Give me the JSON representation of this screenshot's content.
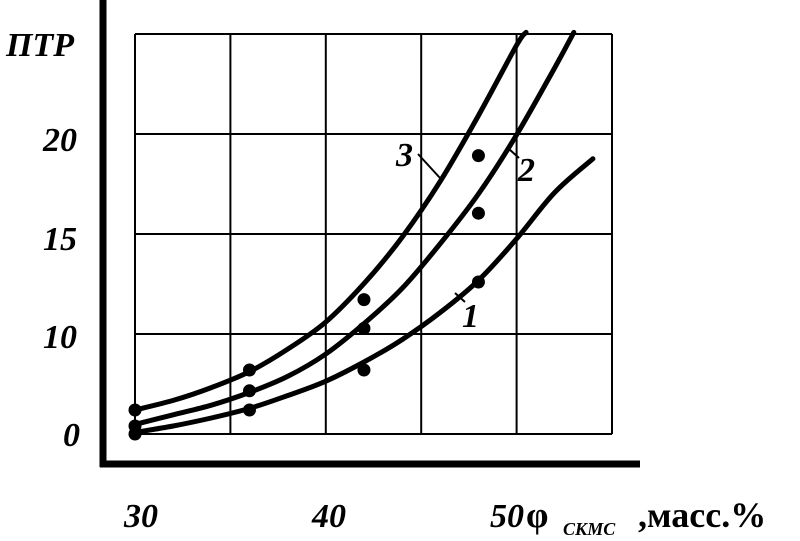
{
  "chart_data": {
    "type": "line",
    "ylabel": "ПТР",
    "xlabel": {
      "symbol": "φ",
      "subscript": "СКМС",
      "unit": ",масс.%"
    },
    "x_ticks": [
      "30",
      "40",
      "50"
    ],
    "y_ticks": [
      "0",
      "10",
      "15",
      "20"
    ],
    "xlim": [
      30,
      55
    ],
    "ylim": [
      0,
      25
    ],
    "grid": true,
    "series": [
      {
        "name": "1",
        "points": [
          [
            30,
            0
          ],
          [
            36,
            1.5
          ],
          [
            42,
            4
          ],
          [
            48,
            9.5
          ]
        ],
        "curve_x": [
          30,
          32,
          34,
          36,
          38,
          40,
          42,
          44,
          46,
          48,
          50,
          52,
          54
        ],
        "curve_y": [
          0.1,
          0.5,
          1,
          1.6,
          2.4,
          3.3,
          4.5,
          5.9,
          7.6,
          9.6,
          12.2,
          15.1,
          17.2
        ]
      },
      {
        "name": "2",
        "points": [
          [
            30,
            0.5
          ],
          [
            36,
            2.7
          ],
          [
            42,
            6.6
          ],
          [
            48,
            13.8
          ]
        ],
        "curve_x": [
          30,
          32,
          34,
          36,
          38,
          40,
          42,
          44,
          46,
          48,
          50,
          52,
          53
        ],
        "curve_y": [
          0.6,
          1.2,
          1.8,
          2.6,
          3.6,
          5,
          6.9,
          9.1,
          11.9,
          15,
          18.7,
          22.9,
          25.1
        ]
      },
      {
        "name": "3",
        "points": [
          [
            30,
            1.5
          ],
          [
            36,
            4
          ],
          [
            42,
            8.4
          ],
          [
            48,
            17.4
          ]
        ],
        "curve_x": [
          30,
          32,
          34,
          36,
          38,
          40,
          42,
          44,
          46,
          48,
          50,
          50.5
        ],
        "curve_y": [
          1.5,
          2.1,
          2.9,
          3.9,
          5.3,
          7,
          9.4,
          12.3,
          15.8,
          19.9,
          24.3,
          25.1
        ]
      }
    ]
  }
}
